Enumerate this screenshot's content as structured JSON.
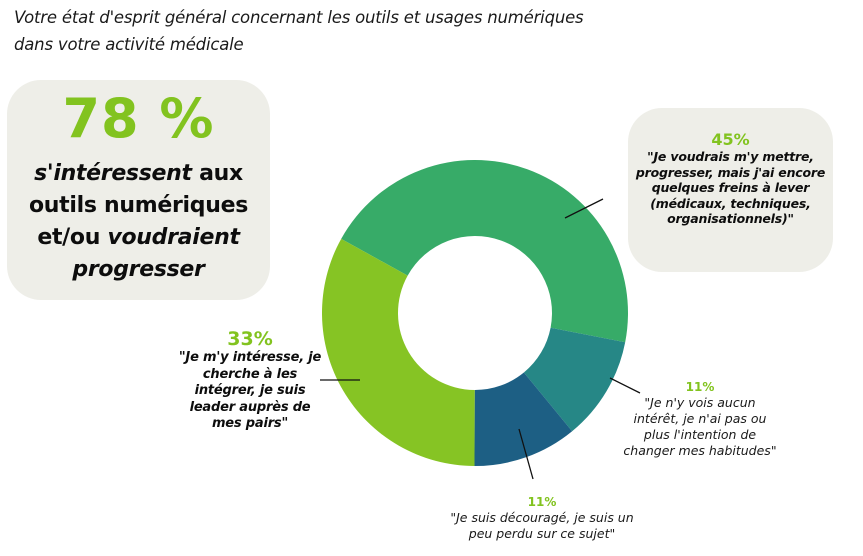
{
  "title": {
    "line1": "Votre état d'esprit général concernant les outils et usages numériques",
    "line2": "dans votre activité médicale"
  },
  "highlight": {
    "percent": "78 %",
    "line1_italic": "s'intéressent",
    "line1_rest": " aux",
    "line2": "outils numériques",
    "line3_plain": "et/ou ",
    "line3_italic": "voudraient",
    "line4_italic": "progresser"
  },
  "labels": {
    "seg45": {
      "percent": "45%",
      "quote": "\"Je voudrais m'y mettre, progresser, mais j'ai encore quelques freins à lever (médicaux, techniques, organisationnels)\""
    },
    "seg33": {
      "percent": "33%",
      "quote": "\"Je m'y intéresse, je cherche à les intégrer, je suis leader auprès de mes pairs\""
    },
    "seg11a": {
      "percent": "11%",
      "quote": "\"Je n'y vois aucun intérêt, je n'ai pas ou plus l'intention de changer mes habitudes\""
    },
    "seg11b": {
      "percent": "11%",
      "quote": "\"Je suis découragé, je suis un peu perdu sur ce sujet\""
    }
  },
  "colors": {
    "lime": "#86c424",
    "green": "#37ab68",
    "teal": "#268786",
    "darkblue": "#1d5f84",
    "card_bg": "#eeeee8",
    "accent_text": "#82c31f"
  },
  "chart_data": {
    "type": "pie",
    "subtype": "donut",
    "title": "Votre état d'esprit général concernant les outils et usages numériques dans votre activité médicale",
    "categories": [
      "Je voudrais m'y mettre, progresser, mais j'ai encore quelques freins à lever (médicaux, techniques, organisationnels)",
      "Je n'y vois aucun intérêt, je n'ai pas ou plus l'intention de changer mes habitudes",
      "Je suis découragé, je suis un peu perdu sur ce sujet",
      "Je m'y intéresse, je cherche à les intégrer, je suis leader auprès de mes pairs"
    ],
    "values": [
      45,
      11,
      11,
      33
    ],
    "unit": "%",
    "colors": [
      "#37ab68",
      "#268786",
      "#1d5f84",
      "#86c424"
    ],
    "annotation": "78 % s'intéressent aux outils numériques et/ou voudraient progresser",
    "legend": "none (callout labels)"
  }
}
